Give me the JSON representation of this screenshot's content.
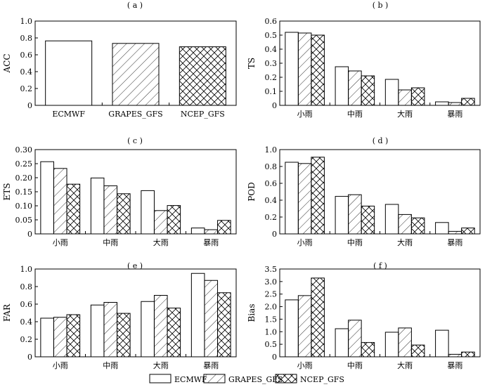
{
  "legend": {
    "items": [
      {
        "name": "ECMWF",
        "pattern": "none"
      },
      {
        "name": "GRAPES_GFS",
        "pattern": "hatch"
      },
      {
        "name": "NCEP_GFS",
        "pattern": "cross"
      }
    ]
  },
  "chart_data": [
    {
      "id": "a",
      "title": "( a )",
      "type": "bar",
      "ylabel": "ACC",
      "ylim": [
        0,
        1.0
      ],
      "yticks": [
        "0",
        "0.2",
        "0.4",
        "0.6",
        "0.8",
        "1.0"
      ],
      "categories": [
        "ECMWF",
        "GRAPES_GFS",
        "NCEP_GFS"
      ],
      "values": [
        0.765,
        0.735,
        0.695
      ],
      "patterns": [
        "none",
        "hatch",
        "cross"
      ]
    },
    {
      "id": "b",
      "title": "( b )",
      "type": "bar",
      "ylabel": "TS",
      "ylim": [
        0,
        0.6
      ],
      "yticks": [
        "0",
        "0.1",
        "0.2",
        "0.3",
        "0.4",
        "0.5",
        "0.6"
      ],
      "categories": [
        "小雨",
        "中雨",
        "大雨",
        "暴雨"
      ],
      "series": [
        {
          "name": "ECMWF",
          "values": [
            0.52,
            0.275,
            0.185,
            0.025
          ]
        },
        {
          "name": "GRAPES_GFS",
          "values": [
            0.515,
            0.245,
            0.11,
            0.02
          ]
        },
        {
          "name": "NCEP_GFS",
          "values": [
            0.5,
            0.21,
            0.125,
            0.05
          ]
        }
      ]
    },
    {
      "id": "c",
      "title": "( c )",
      "type": "bar",
      "ylabel": "ETS",
      "ylim": [
        0,
        0.3
      ],
      "yticks": [
        "0",
        "0.05",
        "0.10",
        "0.15",
        "0.20",
        "0.25",
        "0.30"
      ],
      "categories": [
        "小雨",
        "中雨",
        "大雨",
        "暴雨"
      ],
      "series": [
        {
          "name": "ECMWF",
          "values": [
            0.257,
            0.199,
            0.154,
            0.021
          ]
        },
        {
          "name": "GRAPES_GFS",
          "values": [
            0.233,
            0.171,
            0.083,
            0.015
          ]
        },
        {
          "name": "NCEP_GFS",
          "values": [
            0.177,
            0.143,
            0.101,
            0.048
          ]
        }
      ]
    },
    {
      "id": "d",
      "title": "( d )",
      "type": "bar",
      "ylabel": "POD",
      "ylim": [
        0,
        1.0
      ],
      "yticks": [
        "0",
        "0.2",
        "0.4",
        "0.6",
        "0.8",
        "1.0"
      ],
      "categories": [
        "小雨",
        "中雨",
        "大雨",
        "暴雨"
      ],
      "series": [
        {
          "name": "ECMWF",
          "values": [
            0.85,
            0.445,
            0.35,
            0.135
          ]
        },
        {
          "name": "GRAPES_GFS",
          "values": [
            0.835,
            0.465,
            0.23,
            0.03
          ]
        },
        {
          "name": "NCEP_GFS",
          "values": [
            0.91,
            0.33,
            0.19,
            0.07
          ]
        }
      ]
    },
    {
      "id": "e",
      "title": "( e )",
      "type": "bar",
      "ylabel": "FAR",
      "ylim": [
        0,
        1.0
      ],
      "yticks": [
        "0",
        "0.2",
        "0.4",
        "0.6",
        "0.8",
        "1.0"
      ],
      "categories": [
        "小雨",
        "中雨",
        "大雨",
        "暴雨"
      ],
      "series": [
        {
          "name": "ECMWF",
          "values": [
            0.44,
            0.59,
            0.63,
            0.95
          ]
        },
        {
          "name": "GRAPES_GFS",
          "values": [
            0.45,
            0.62,
            0.7,
            0.87
          ]
        },
        {
          "name": "NCEP_GFS",
          "values": [
            0.48,
            0.495,
            0.555,
            0.73
          ]
        }
      ]
    },
    {
      "id": "f",
      "title": "( f )",
      "type": "bar",
      "ylabel": "Bias",
      "ylim": [
        0,
        3.5
      ],
      "yticks": [
        "0",
        "0.5",
        "1.0",
        "1.5",
        "2.0",
        "2.5",
        "3.0",
        "3.5"
      ],
      "categories": [
        "小雨",
        "中雨",
        "大雨",
        "暴雨"
      ],
      "series": [
        {
          "name": "ECMWF",
          "values": [
            2.27,
            1.12,
            0.98,
            1.06
          ]
        },
        {
          "name": "GRAPES_GFS",
          "values": [
            2.44,
            1.46,
            1.15,
            0.1
          ]
        },
        {
          "name": "NCEP_GFS",
          "values": [
            3.14,
            0.57,
            0.47,
            0.19
          ]
        }
      ]
    }
  ]
}
